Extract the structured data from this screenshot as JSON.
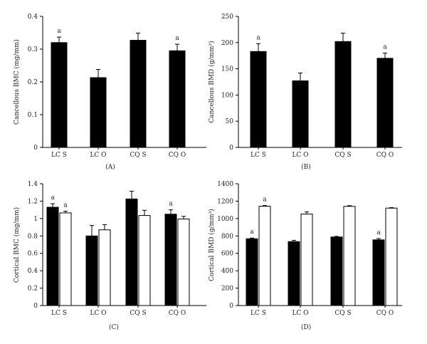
{
  "chart_data": [
    {
      "panel": "(A)",
      "type": "bar",
      "ylabel": "Cancellous BMC (mg/mm)",
      "ylim": [
        0,
        0.4
      ],
      "yticks": [
        "0",
        "0.1",
        "0.2",
        "0.3",
        "0.4"
      ],
      "categories": [
        "LC S",
        "LC O",
        "CQ S",
        "CQ O"
      ],
      "series": [
        {
          "fill": "#000000",
          "values": [
            0.32,
            0.213,
            0.327,
            0.295
          ],
          "errors": [
            0.017,
            0.025,
            0.022,
            0.02
          ],
          "annotations": [
            "a",
            "",
            "",
            "a"
          ]
        }
      ]
    },
    {
      "panel": "(B)",
      "type": "bar",
      "ylabel": "Cancellous BMD (g/mm³)",
      "ylim": [
        0,
        250
      ],
      "yticks": [
        "0",
        "50",
        "100",
        "150",
        "200",
        "250"
      ],
      "categories": [
        "LC S",
        "LC O",
        "CQ S",
        "CQ O"
      ],
      "series": [
        {
          "fill": "#000000",
          "values": [
            183,
            127,
            202,
            170
          ],
          "errors": [
            15,
            15,
            16,
            10
          ],
          "annotations": [
            "a",
            "",
            "",
            "a"
          ]
        }
      ]
    },
    {
      "panel": "(C)",
      "type": "bar",
      "ylabel": "Cortical BMC (mg/mm)",
      "ylim": [
        0,
        1.4
      ],
      "yticks": [
        "0",
        "0.2",
        "0.4",
        "0.6",
        "0.8",
        "1",
        "1.2",
        "1.4"
      ],
      "categories": [
        "LC S",
        "LC O",
        "CQ S",
        "CQ O"
      ],
      "series": [
        {
          "fill": "#000000",
          "values": [
            1.13,
            0.8,
            1.225,
            1.05
          ],
          "errors": [
            0.04,
            0.12,
            0.09,
            0.05
          ],
          "annotations": [
            "a",
            "",
            "",
            "a"
          ]
        },
        {
          "fill": "#ffffff",
          "values": [
            1.065,
            0.87,
            1.035,
            0.995
          ],
          "errors": [
            0.02,
            0.06,
            0.06,
            0.03
          ],
          "annotations": [
            "a",
            "",
            "",
            ""
          ]
        }
      ]
    },
    {
      "panel": "(D)",
      "type": "bar",
      "ylabel": "Cortical BMD (g/mm³)",
      "ylim": [
        0,
        1400
      ],
      "yticks": [
        "0",
        "200",
        "400",
        "600",
        "800",
        "1000",
        "1200",
        "1400"
      ],
      "categories": [
        "LC S",
        "LC O",
        "CQ S",
        "CQ O"
      ],
      "series": [
        {
          "fill": "#000000",
          "values": [
            768,
            735,
            788,
            755
          ],
          "errors": [
            8,
            15,
            7,
            15
          ],
          "annotations": [
            "a",
            "",
            "",
            "a"
          ]
        },
        {
          "fill": "#ffffff",
          "values": [
            1142,
            1052,
            1140,
            1120
          ],
          "errors": [
            7,
            25,
            8,
            6
          ],
          "annotations": [
            "a",
            "",
            "",
            ""
          ]
        }
      ]
    }
  ]
}
